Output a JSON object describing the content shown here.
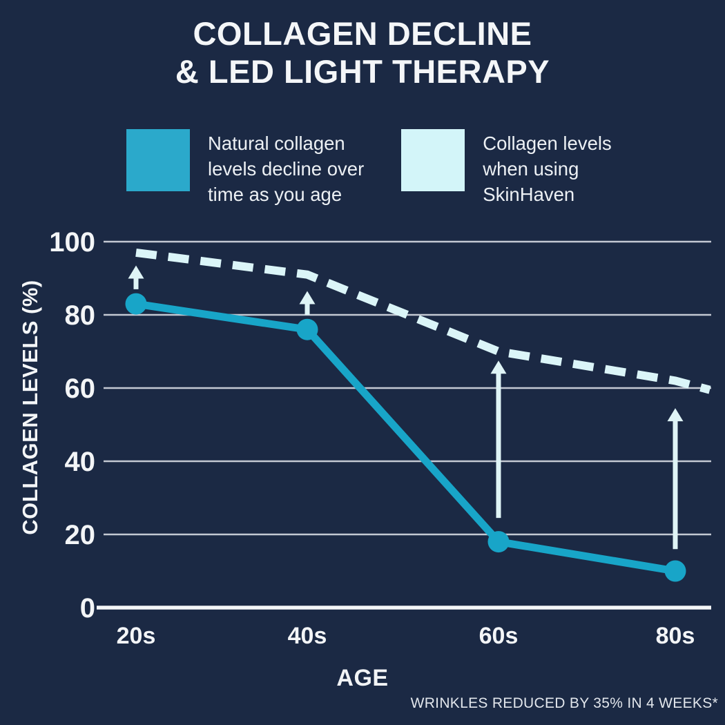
{
  "title": {
    "line1": "COLLAGEN DECLINE",
    "line2": "& LED LIGHT THERAPY"
  },
  "legend": {
    "items": [
      {
        "swatch_color": "#2BA9CB",
        "lines": [
          "Natural collagen",
          "levels decline over",
          "time as you age"
        ]
      },
      {
        "swatch_color": "#D3F5F9",
        "lines": [
          "Collagen levels",
          "when using",
          "SkinHaven"
        ]
      }
    ]
  },
  "footnote": "WRINKLES REDUCED BY 35% IN 4 WEEKS*",
  "colors": {
    "background": "#1B2944",
    "text": "#F4F6F8",
    "gridline": "#C4C9D3",
    "axis_line": "#F4F6F8",
    "solid_series": "#18A5C8",
    "dashed_series": "#DBF5F8",
    "arrow": "#DFF4F6"
  },
  "chart_data": {
    "type": "line",
    "categories": [
      "20s",
      "40s",
      "60s",
      "80s"
    ],
    "xlabel": "AGE",
    "ylabel": "COLLAGEN LEVELS (%)",
    "ylim": [
      0,
      100
    ],
    "yticks": [
      0,
      20,
      40,
      60,
      80,
      100
    ],
    "grid": true,
    "legend_position": "top",
    "series": [
      {
        "name": "Natural collagen levels decline over time as you age",
        "line_style": "solid",
        "color": "#18A5C8",
        "markers": true,
        "values": [
          83,
          76,
          18,
          10
        ]
      },
      {
        "name": "Collagen levels when using SkinHaven",
        "line_style": "dashed",
        "color": "#DBF5F8",
        "markers": false,
        "values": [
          97,
          91,
          70,
          62
        ],
        "extension_value": 59.5
      }
    ],
    "arrows": [
      {
        "category_index": 0,
        "from_value": 87,
        "to_value": 93.5
      },
      {
        "category_index": 1,
        "from_value": 80,
        "to_value": 86.5
      },
      {
        "category_index": 2,
        "from_value": 24.5,
        "to_value": 67.5
      },
      {
        "category_index": 3,
        "from_value": 16,
        "to_value": 54.5
      }
    ]
  }
}
